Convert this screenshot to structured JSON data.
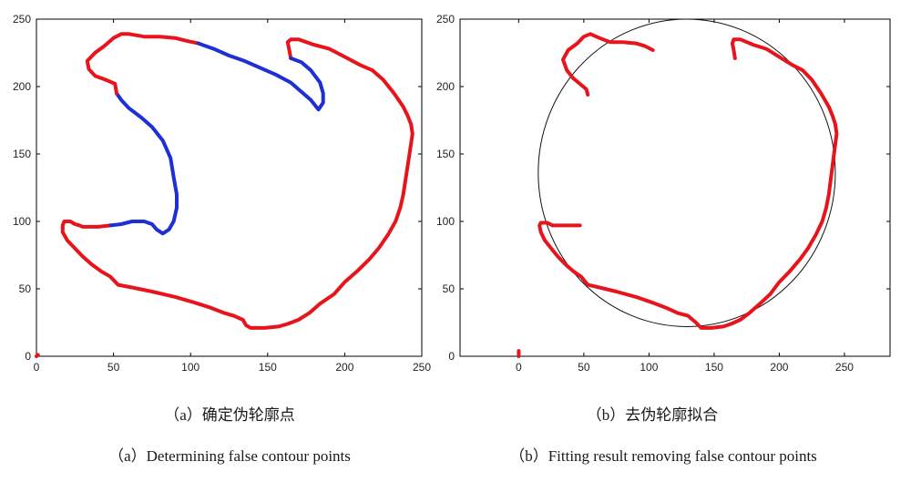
{
  "chart_data": [
    {
      "panel": "a",
      "type": "line",
      "caption_cn": "（a）确定伪轮廓点",
      "caption_en": "（a）Determining false contour points",
      "xlim": [
        0,
        250
      ],
      "ylim": [
        0,
        250
      ],
      "xticks": [
        "0",
        "50",
        "100",
        "150",
        "200",
        "250"
      ],
      "yticks": [
        "0",
        "50",
        "100",
        "150",
        "200",
        "250"
      ],
      "colors": {
        "true_contour": "#e8141c",
        "false_contour": "#1e2fd6"
      },
      "series": [
        {
          "color": "red",
          "points": [
            [
              48,
              97
            ],
            [
              40,
              96
            ],
            [
              35,
              96
            ],
            [
              30,
              96
            ],
            [
              28,
              97
            ],
            [
              25,
              98
            ],
            [
              22,
              100
            ],
            [
              18,
              100
            ],
            [
              17,
              97
            ],
            [
              17,
              92
            ],
            [
              20,
              86
            ],
            [
              25,
              80
            ],
            [
              30,
              74
            ],
            [
              36,
              68
            ],
            [
              42,
              63
            ],
            [
              48,
              59
            ],
            [
              53,
              53
            ],
            [
              62,
              51
            ],
            [
              75,
              48
            ],
            [
              90,
              44
            ],
            [
              102,
              40
            ],
            [
              113,
              36
            ],
            [
              122,
              32
            ],
            [
              128,
              30
            ],
            [
              134,
              27
            ],
            [
              136,
              23
            ],
            [
              139,
              21
            ],
            [
              148,
              21
            ],
            [
              157,
              22
            ],
            [
              163,
              24
            ],
            [
              170,
              27
            ],
            [
              177,
              32
            ],
            [
              184,
              39
            ],
            [
              193,
              46
            ],
            [
              200,
              55
            ],
            [
              208,
              63
            ],
            [
              216,
              72
            ],
            [
              222,
              80
            ],
            [
              228,
              90
            ],
            [
              233,
              100
            ],
            [
              236,
              110
            ],
            [
              238,
              120
            ],
            [
              240,
              135
            ],
            [
              242,
              150
            ],
            [
              244,
              165
            ],
            [
              243,
              172
            ],
            [
              241,
              178
            ],
            [
              238,
              185
            ],
            [
              232,
              195
            ],
            [
              225,
              205
            ],
            [
              218,
              212
            ],
            [
              210,
              216
            ],
            [
              200,
              222
            ],
            [
              190,
              228
            ],
            [
              180,
              231
            ],
            [
              170,
              235
            ],
            [
              165,
              235
            ],
            [
              163,
              233
            ],
            [
              164,
              227
            ],
            [
              165,
              221
            ]
          ]
        },
        {
          "color": "blue",
          "points": [
            [
              48,
              97
            ],
            [
              55,
              98
            ],
            [
              62,
              100
            ],
            [
              70,
              100
            ],
            [
              75,
              98
            ],
            [
              78,
              94
            ],
            [
              82,
              91
            ],
            [
              86,
              94
            ],
            [
              89,
              100
            ],
            [
              91,
              110
            ],
            [
              91,
              120
            ],
            [
              89,
              133
            ],
            [
              87,
              147
            ],
            [
              82,
              160
            ],
            [
              75,
              170
            ],
            [
              68,
              177
            ],
            [
              60,
              184
            ],
            [
              55,
              190
            ],
            [
              52,
              195
            ]
          ]
        },
        {
          "color": "red",
          "points": [
            [
              52,
              195
            ],
            [
              51,
              202
            ],
            [
              45,
              205
            ],
            [
              38,
              208
            ],
            [
              34,
              213
            ],
            [
              33,
              219
            ],
            [
              38,
              225
            ],
            [
              44,
              230
            ],
            [
              50,
              236
            ],
            [
              55,
              239
            ],
            [
              60,
              239
            ],
            [
              70,
              237
            ],
            [
              80,
              237
            ],
            [
              90,
              236
            ],
            [
              97,
              234
            ],
            [
              105,
              232
            ]
          ]
        },
        {
          "color": "blue",
          "points": [
            [
              105,
              232
            ],
            [
              115,
              228
            ],
            [
              125,
              223
            ],
            [
              135,
              219
            ],
            [
              145,
              214
            ],
            [
              155,
              209
            ],
            [
              165,
              203
            ],
            [
              172,
              196
            ],
            [
              178,
              190
            ],
            [
              183,
              183
            ],
            [
              186,
              188
            ],
            [
              186,
              195
            ],
            [
              184,
              203
            ],
            [
              178,
              212
            ],
            [
              172,
              218
            ],
            [
              165,
              221
            ]
          ]
        },
        {
          "color": "red",
          "points": [
            [
              0,
              0
            ],
            [
              1,
              1
            ]
          ]
        }
      ]
    },
    {
      "panel": "b",
      "type": "line",
      "caption_cn": "（b）去伪轮廓拟合",
      "caption_en": "（b）Fitting result removing false contour points",
      "xlim": [
        -45,
        285
      ],
      "ylim": [
        0,
        250
      ],
      "xticks": [
        "0",
        "50",
        "100",
        "150",
        "200",
        "250"
      ],
      "yticks": [
        "0",
        "50",
        "100",
        "150",
        "200",
        "250"
      ],
      "colors": {
        "contour": "#e8141c",
        "fit": "#111111"
      },
      "fit_circle": {
        "cx": 129,
        "cy": 136,
        "r": 114
      },
      "series": [
        {
          "color": "red",
          "points": [
            [
              47,
              97
            ],
            [
              40,
              97
            ],
            [
              32,
              97
            ],
            [
              26,
              97
            ],
            [
              22,
              99
            ],
            [
              17,
              99
            ],
            [
              16,
              97
            ],
            [
              17,
              92
            ],
            [
              20,
              86
            ],
            [
              25,
              80
            ],
            [
              30,
              74
            ],
            [
              36,
              68
            ],
            [
              42,
              63
            ],
            [
              48,
              59
            ],
            [
              53,
              53
            ],
            [
              62,
              51
            ],
            [
              75,
              48
            ],
            [
              90,
              44
            ],
            [
              102,
              40
            ],
            [
              113,
              36
            ],
            [
              122,
              32
            ],
            [
              130,
              30
            ],
            [
              136,
              25
            ],
            [
              140,
              21
            ],
            [
              148,
              21
            ],
            [
              157,
              22
            ],
            [
              163,
              24
            ],
            [
              170,
              27
            ],
            [
              177,
              32
            ],
            [
              184,
              38
            ],
            [
              193,
              46
            ],
            [
              200,
              55
            ],
            [
              208,
              63
            ],
            [
              216,
              72
            ],
            [
              222,
              80
            ],
            [
              228,
              90
            ],
            [
              233,
              100
            ],
            [
              236,
              110
            ],
            [
              238,
              120
            ],
            [
              240,
              135
            ],
            [
              242,
              150
            ],
            [
              244,
              165
            ],
            [
              243,
              172
            ],
            [
              241,
              178
            ],
            [
              238,
              185
            ],
            [
              232,
              195
            ],
            [
              225,
              205
            ],
            [
              218,
              212
            ],
            [
              210,
              216
            ],
            [
              200,
              222
            ],
            [
              190,
              228
            ],
            [
              180,
              231
            ],
            [
              170,
              235
            ],
            [
              165,
              235
            ],
            [
              164,
              232
            ],
            [
              165,
              227
            ],
            [
              166,
              221
            ]
          ]
        },
        {
          "color": "red",
          "points": [
            [
              103,
              227
            ],
            [
              97,
              230
            ],
            [
              90,
              232
            ],
            [
              80,
              233
            ],
            [
              70,
              233
            ],
            [
              62,
              236
            ],
            [
              55,
              239
            ],
            [
              50,
              237
            ],
            [
              45,
              232
            ],
            [
              38,
              227
            ],
            [
              34,
              220
            ],
            [
              37,
              212
            ],
            [
              42,
              206
            ],
            [
              47,
              202
            ],
            [
              52,
              198
            ],
            [
              53,
              194
            ]
          ]
        },
        {
          "color": "red",
          "points": [
            [
              0,
              0
            ],
            [
              0,
              4
            ]
          ]
        }
      ]
    }
  ]
}
